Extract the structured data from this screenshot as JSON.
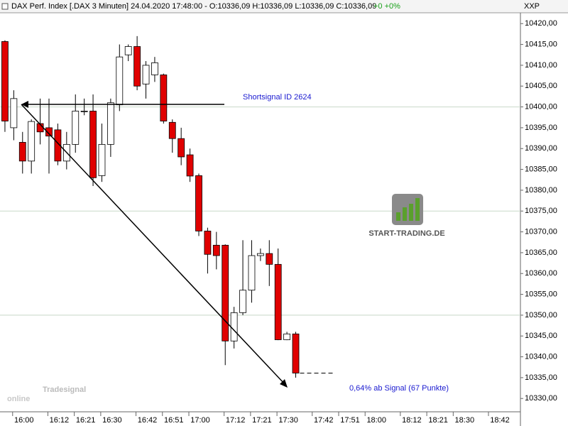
{
  "chart_data": {
    "type": "candlestick",
    "title": "DAX Perf. Index [.DAX  3 Minuten] 24.04.2020 17:48:00 - O:10336,09 H:10336,09 L:10336,09 C:10336,09",
    "title_change": "+0 +0%",
    "axis_name": "XXP",
    "annotations": [
      "Shortsignal ID 2624",
      "0,64% ab Signal (67 Punkte)"
    ],
    "logo": "START-TRADING.DE",
    "watermark": {
      "brand": "Tradesignal",
      "text": "online"
    },
    "up_color": "#ffffff",
    "down_color": "#e00000",
    "open": [
      10415.7,
      10395,
      10391.5,
      10387,
      10396,
      10395,
      10394.5,
      10387,
      10391,
      10399,
      10399,
      10383.5,
      10391,
      10400.5,
      10412.5,
      10414.5,
      10405.5,
      10407.7,
      10407.7,
      10396.3,
      10392.4,
      10388.5,
      10383.5,
      10370.2,
      10366.8,
      10366.8,
      10343.8,
      10350.6,
      10356,
      10364.3,
      10364.8,
      10362.2,
      10344.1,
      10345.5
    ],
    "high": [
      10416,
      10404,
      10394,
      10397,
      10402,
      10402,
      10396,
      10394,
      10403,
      10402,
      10403,
      10396,
      10402,
      10415,
      10415,
      10417,
      10411,
      10412,
      10408,
      10397,
      10395,
      10390,
      10384,
      10371,
      10370,
      10367,
      10352,
      10368,
      10368,
      10366,
      10368,
      10366,
      10346,
      10346
    ],
    "low": [
      10394,
      10392,
      10384,
      10384,
      10391,
      10384,
      10386,
      10385,
      10389,
      10398,
      10381,
      10382,
      10388,
      10399,
      10411,
      10404,
      10402,
      10406,
      10396,
      10389,
      10386,
      10382,
      10369,
      10360,
      10361,
      10338,
      10342,
      10350,
      10353,
      10363,
      10357,
      10344,
      10344,
      10335
    ],
    "close": [
      10396.6,
      10402,
      10387,
      10396.5,
      10394,
      10393,
      10387,
      10391,
      10399,
      10399,
      10383,
      10391,
      10401,
      10412,
      10414.5,
      10405,
      10410,
      10410.6,
      10396.6,
      10392.4,
      10388,
      10383.4,
      10370.2,
      10364.6,
      10364.3,
      10343.8,
      10350.6,
      10356,
      10364.3,
      10364.8,
      10362.2,
      10344.1,
      10345.5,
      10336.1
    ],
    "xlim": [
      -0.56,
      58.5
    ],
    "xticks": [
      {
        "value": 2,
        "label": "16:00"
      },
      {
        "value": 6,
        "label": "16:12"
      },
      {
        "value": 9,
        "label": "16:21"
      },
      {
        "value": 12,
        "label": "16:30"
      },
      {
        "value": 16,
        "label": "16:42"
      },
      {
        "value": 19,
        "label": "16:51"
      },
      {
        "value": 22,
        "label": "17:00"
      },
      {
        "value": 26,
        "label": "17:12"
      },
      {
        "value": 29,
        "label": "17:21"
      },
      {
        "value": 32,
        "label": "17:30"
      },
      {
        "value": 36,
        "label": "17:42"
      },
      {
        "value": 39,
        "label": "17:51"
      },
      {
        "value": 42,
        "label": "18:00"
      },
      {
        "value": 46,
        "label": "18:12"
      },
      {
        "value": 49,
        "label": "18:21"
      },
      {
        "value": 52,
        "label": "18:30"
      },
      {
        "value": 56,
        "label": "18:42"
      }
    ],
    "ylim": [
      10326.8,
      10422.6
    ],
    "yticks": [
      {
        "value": 10330,
        "label": "10330,00"
      },
      {
        "value": 10335,
        "label": "10335,00"
      },
      {
        "value": 10340,
        "label": "10340,00"
      },
      {
        "value": 10345,
        "label": "10345,00"
      },
      {
        "value": 10350,
        "label": "10350,00"
      },
      {
        "value": 10355,
        "label": "10355,00"
      },
      {
        "value": 10360,
        "label": "10360,00"
      },
      {
        "value": 10365,
        "label": "10365,00"
      },
      {
        "value": 10370,
        "label": "10370,00"
      },
      {
        "value": 10375,
        "label": "10375,00"
      },
      {
        "value": 10380,
        "label": "10380,00"
      },
      {
        "value": 10385,
        "label": "10385,00"
      },
      {
        "value": 10390,
        "label": "10390,00"
      },
      {
        "value": 10395,
        "label": "10395,00"
      },
      {
        "value": 10400,
        "label": "10400,00"
      },
      {
        "value": 10405,
        "label": "10405,00"
      },
      {
        "value": 10410,
        "label": "10410,00"
      },
      {
        "value": 10415,
        "label": "10415,00"
      },
      {
        "value": 10420,
        "label": "10420,00"
      }
    ],
    "ygrid": [
      10350,
      10375,
      10400
    ]
  }
}
